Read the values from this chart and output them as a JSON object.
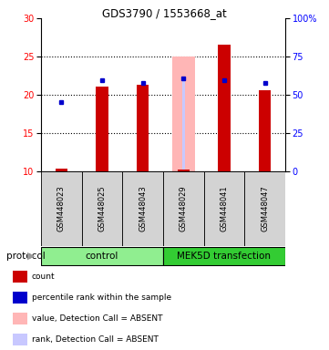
{
  "title": "GDS3790 / 1553668_at",
  "samples": [
    "GSM448023",
    "GSM448025",
    "GSM448043",
    "GSM448029",
    "GSM448041",
    "GSM448047"
  ],
  "count_values": [
    10.4,
    21.1,
    21.3,
    10.2,
    26.5,
    20.6
  ],
  "percentile_values": [
    19.0,
    21.9,
    21.5,
    22.1,
    21.9,
    21.6
  ],
  "absent_bar_value": 25.0,
  "absent_bar_sample_idx": 3,
  "absent_rank_value": 22.2,
  "absent_rank_sample_idx": 3,
  "ylim_left": [
    10,
    30
  ],
  "ylim_right": [
    0,
    100
  ],
  "yticks_left": [
    10,
    15,
    20,
    25,
    30
  ],
  "yticks_right": [
    0,
    25,
    50,
    75,
    100
  ],
  "ytick_labels_right": [
    "0",
    "25",
    "50",
    "75",
    "100%"
  ],
  "bar_bottom": 10,
  "count_color": "#cc0000",
  "percentile_color": "#0000cc",
  "absent_bar_color": "#ffb6b6",
  "absent_rank_color": "#c8c8ff",
  "absent_bar_width": 0.55,
  "bar_width": 0.3,
  "absent_rank_bar_width": 0.08,
  "groups": [
    {
      "label": "control",
      "start": 0,
      "end": 3,
      "color": "#90ee90"
    },
    {
      "label": "MEK5D transfection",
      "start": 3,
      "end": 6,
      "color": "#33cc33"
    }
  ],
  "protocol_label": "protocol",
  "legend_items": [
    {
      "label": "count",
      "color": "#cc0000"
    },
    {
      "label": "percentile rank within the sample",
      "color": "#0000cc"
    },
    {
      "label": "value, Detection Call = ABSENT",
      "color": "#ffb6b6"
    },
    {
      "label": "rank, Detection Call = ABSENT",
      "color": "#c8c8ff"
    }
  ],
  "grid_color": "#888888",
  "bg_color": "#ffffff",
  "sample_label_bg": "#d3d3d3"
}
